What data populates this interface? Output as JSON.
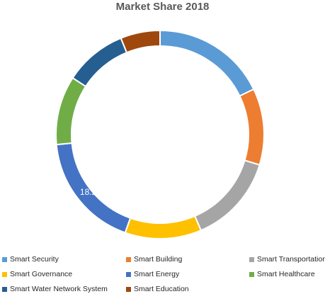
{
  "chart_data": {
    "type": "donut",
    "title": "Market Share 2018",
    "categories": [
      "Smart Security",
      "Smart Building",
      "Smart Transportation",
      "Smart Governance",
      "Smart Energy",
      "Smart Healthcare",
      "Smart Water Network System",
      "Smart Education"
    ],
    "values": [
      18.0,
      12.0,
      14.0,
      12.0,
      18.2,
      10.8,
      9.8,
      6.2
    ],
    "units": "%",
    "colors": [
      "#5b9bd5",
      "#ed7d31",
      "#a5a5a5",
      "#ffc000",
      "#4472c4",
      "#70ad47",
      "#255e91",
      "#9e480e"
    ],
    "data_labels": [
      {
        "category": "Smart Energy",
        "text": "18.2%"
      }
    ],
    "legend_position": "bottom"
  }
}
